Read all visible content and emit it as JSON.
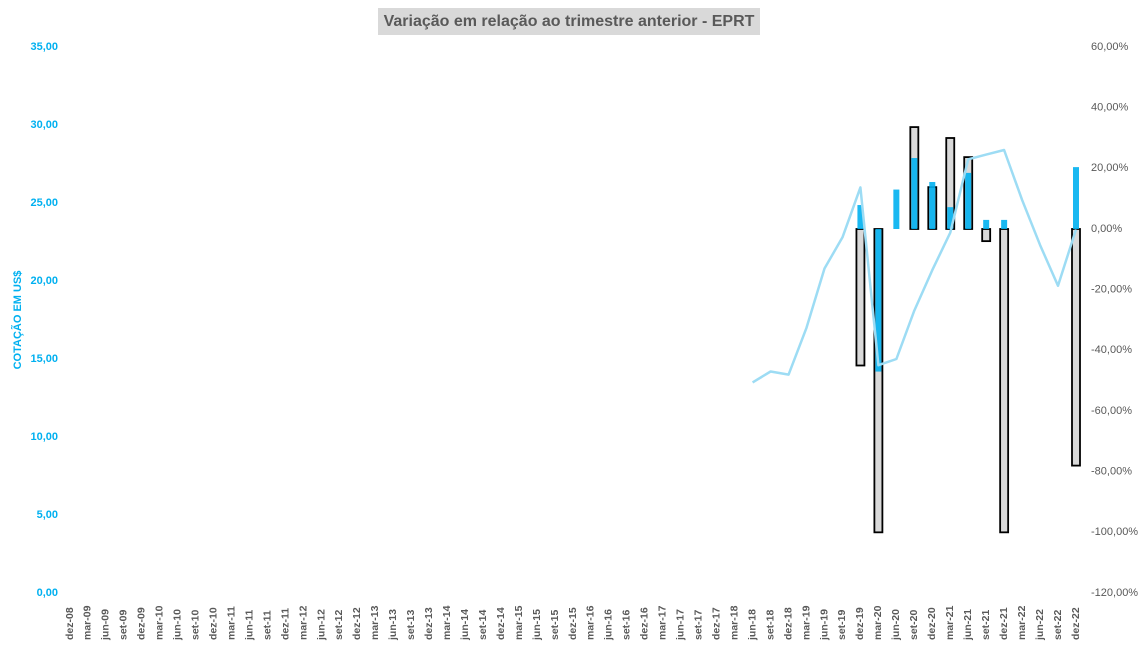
{
  "chart_data": {
    "type": "combo",
    "title": "Variação em relação ao trimestre anterior - EPRT",
    "ylabel": "COTAÇÃO EM US$",
    "categories": [
      "dez-08",
      "mar-09",
      "jun-09",
      "set-09",
      "dez-09",
      "mar-10",
      "jun-10",
      "set-10",
      "dez-10",
      "mar-11",
      "jun-11",
      "set-11",
      "dez-11",
      "mar-12",
      "jun-12",
      "set-12",
      "dez-12",
      "mar-13",
      "jun-13",
      "set-13",
      "dez-13",
      "mar-14",
      "jun-14",
      "set-14",
      "dez-14",
      "mar-15",
      "jun-15",
      "set-15",
      "dez-15",
      "mar-16",
      "jun-16",
      "set-16",
      "dez-16",
      "mar-17",
      "jun-17",
      "set-17",
      "dez-17",
      "mar-18",
      "jun-18",
      "set-18",
      "dez-18",
      "mar-19",
      "jun-19",
      "set-19",
      "dez-19",
      "mar-20",
      "jun-20",
      "set-20",
      "dez-20",
      "mar-21",
      "jun-21",
      "set-21",
      "dez-21",
      "mar-22",
      "jun-22",
      "set-22",
      "dez-22"
    ],
    "series": [
      {
        "type": "outline-bar",
        "axis": "y2",
        "color": "#d9d9d9",
        "values": [
          null,
          null,
          null,
          null,
          null,
          null,
          null,
          null,
          null,
          null,
          null,
          null,
          null,
          null,
          null,
          null,
          null,
          null,
          null,
          null,
          null,
          null,
          null,
          null,
          null,
          null,
          null,
          null,
          null,
          null,
          null,
          null,
          null,
          null,
          null,
          null,
          null,
          null,
          null,
          null,
          null,
          null,
          null,
          null,
          -45,
          -100,
          null,
          33.6,
          13.8,
          30,
          23.7,
          -4,
          -100,
          null,
          null,
          null,
          -78
        ]
      },
      {
        "type": "bar",
        "axis": "y2",
        "color": "#00b0f0",
        "values": [
          null,
          null,
          null,
          null,
          null,
          null,
          null,
          null,
          null,
          null,
          null,
          null,
          null,
          null,
          null,
          null,
          null,
          null,
          null,
          null,
          null,
          null,
          null,
          null,
          null,
          null,
          null,
          null,
          null,
          null,
          null,
          null,
          null,
          null,
          null,
          null,
          null,
          null,
          null,
          null,
          null,
          null,
          null,
          null,
          7.9,
          -47,
          13,
          23.4,
          15.5,
          7.2,
          18.5,
          3,
          3,
          null,
          null,
          null,
          20.4
        ]
      },
      {
        "type": "line",
        "axis": "y",
        "color": "#9ddcf4",
        "values": [
          null,
          null,
          null,
          null,
          null,
          null,
          null,
          null,
          null,
          null,
          null,
          null,
          null,
          null,
          null,
          null,
          null,
          null,
          null,
          null,
          null,
          null,
          null,
          null,
          null,
          null,
          null,
          null,
          null,
          null,
          null,
          null,
          null,
          null,
          null,
          null,
          null,
          null,
          13.5,
          14.2,
          14.0,
          17.0,
          20.8,
          22.8,
          26.0,
          14.6,
          15.0,
          18.1,
          20.7,
          23.1,
          27.8,
          28.1,
          28.4,
          25.2,
          22.3,
          19.7,
          23.3
        ]
      }
    ],
    "ylim": [
      0,
      35
    ],
    "yticks": [
      {
        "value": 0,
        "label": "0,00"
      },
      {
        "value": 5,
        "label": "5,00"
      },
      {
        "value": 10,
        "label": "10,00"
      },
      {
        "value": 15,
        "label": "15,00"
      },
      {
        "value": 20,
        "label": "20,00"
      },
      {
        "value": 25,
        "label": "25,00"
      },
      {
        "value": 30,
        "label": "30,00"
      },
      {
        "value": 35,
        "label": "35,00"
      }
    ],
    "y2lim": [
      -120,
      60
    ],
    "y2ticks": [
      {
        "value": -120,
        "label": "-120,00%"
      },
      {
        "value": -100,
        "label": "-100,00%"
      },
      {
        "value": -80,
        "label": "-80,00%"
      },
      {
        "value": -60,
        "label": "-60,00%"
      },
      {
        "value": -40,
        "label": "-40,00%"
      },
      {
        "value": -20,
        "label": "-20,00%"
      },
      {
        "value": 0,
        "label": "0,00%"
      },
      {
        "value": 20,
        "label": "20,00%"
      },
      {
        "value": 40,
        "label": "40,00%"
      },
      {
        "value": 60,
        "label": "60,00%"
      }
    ],
    "grid": false
  }
}
